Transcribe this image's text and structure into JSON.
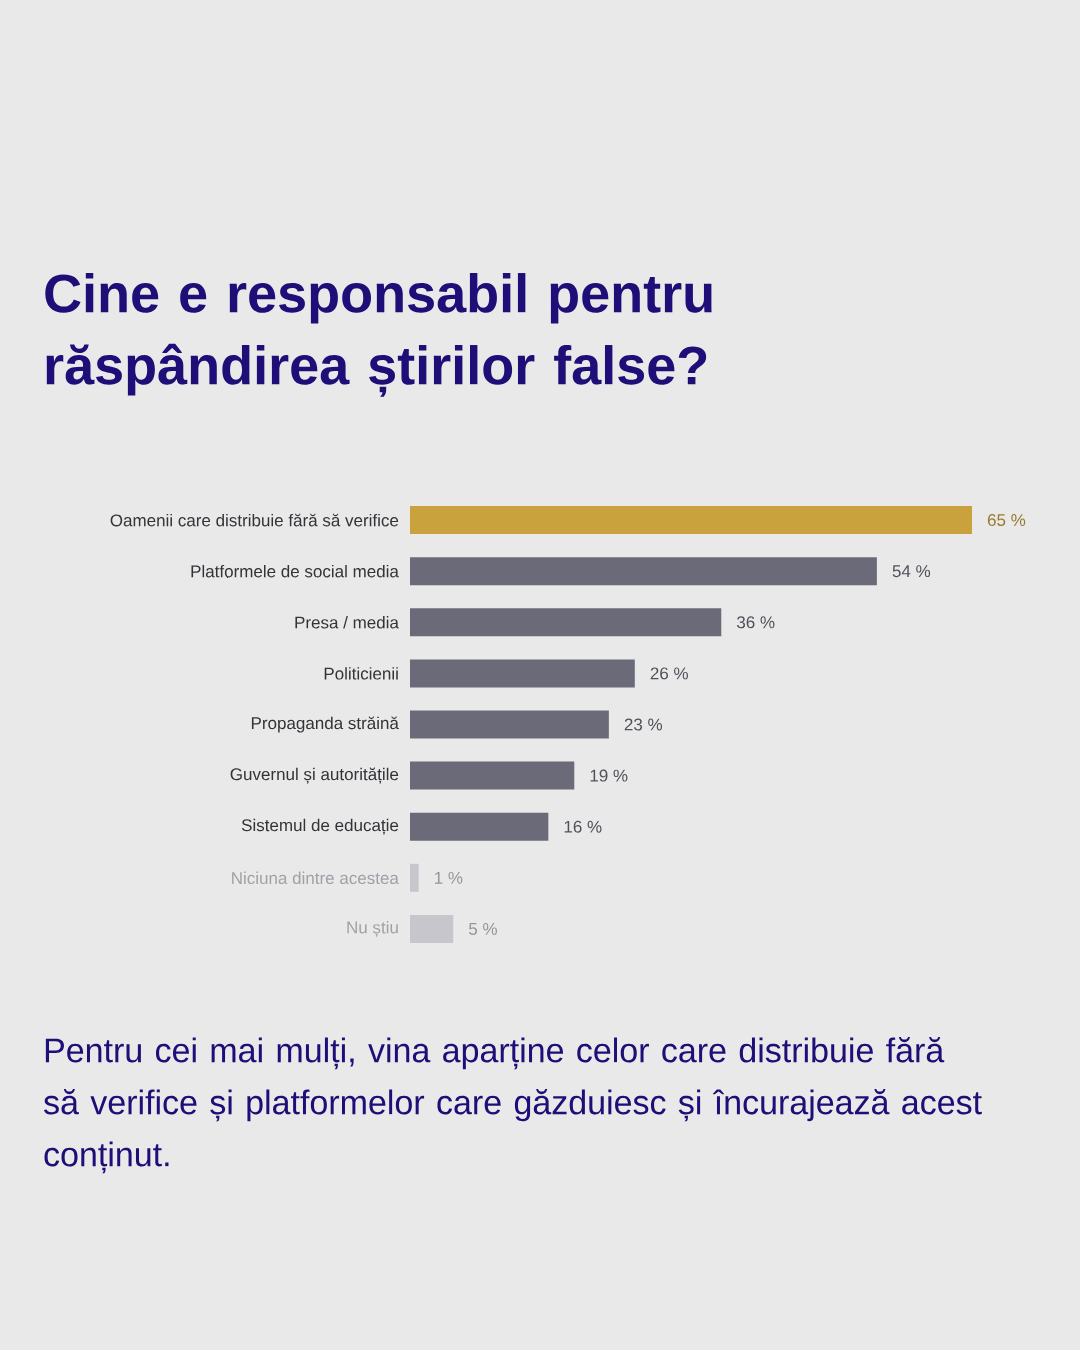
{
  "chart_data": {
    "type": "bar",
    "orientation": "horizontal",
    "title": "Cine e responsabil pentru răspândirea știrilor false?",
    "categories": [
      "Oamenii care distribuie fără să verifice",
      "Platformele de social media",
      "Presa / media",
      "Politicienii",
      "Propaganda străină",
      "Guvernul și autoritățile",
      "Sistemul de educație",
      "Niciuna dintre acestea",
      "Nu știu"
    ],
    "values": [
      65,
      54,
      36,
      26,
      23,
      19,
      16,
      1,
      5
    ],
    "value_labels": [
      "65 %",
      "54 %",
      "36 %",
      "26 %",
      "23 %",
      "19 %",
      "16 %",
      "1 %",
      "5 %"
    ],
    "colors": [
      "#c9a23e",
      "#6b6a78",
      "#6b6a78",
      "#6b6a78",
      "#6b6a78",
      "#6b6a78",
      "#6b6a78",
      "#c6c6cc",
      "#c6c6cc"
    ],
    "annotations": [
      "Pentru cei mai mulți, vina aparține celor care distribuie fără să verifice și platformelor care găzduiesc și încurajează acest conținut."
    ]
  }
}
